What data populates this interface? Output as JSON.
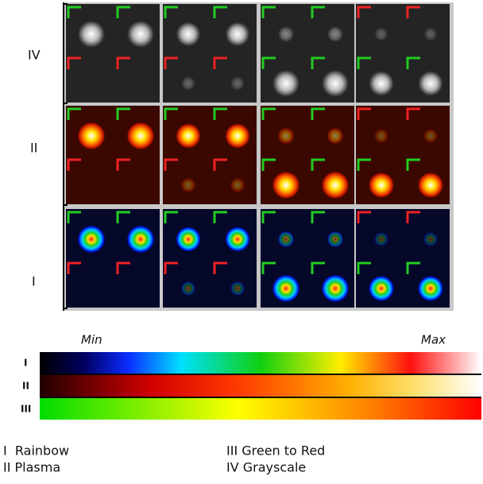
{
  "row_labels": [
    "IV",
    "II",
    "I"
  ],
  "colorbar": {
    "min_label": "Min",
    "max_label": "Max",
    "bar_labels": [
      "I",
      "II",
      "III"
    ]
  },
  "legend": [
    "I  Rainbow",
    "II Plasma",
    "III Green to Red",
    "IV Grayscale"
  ]
}
